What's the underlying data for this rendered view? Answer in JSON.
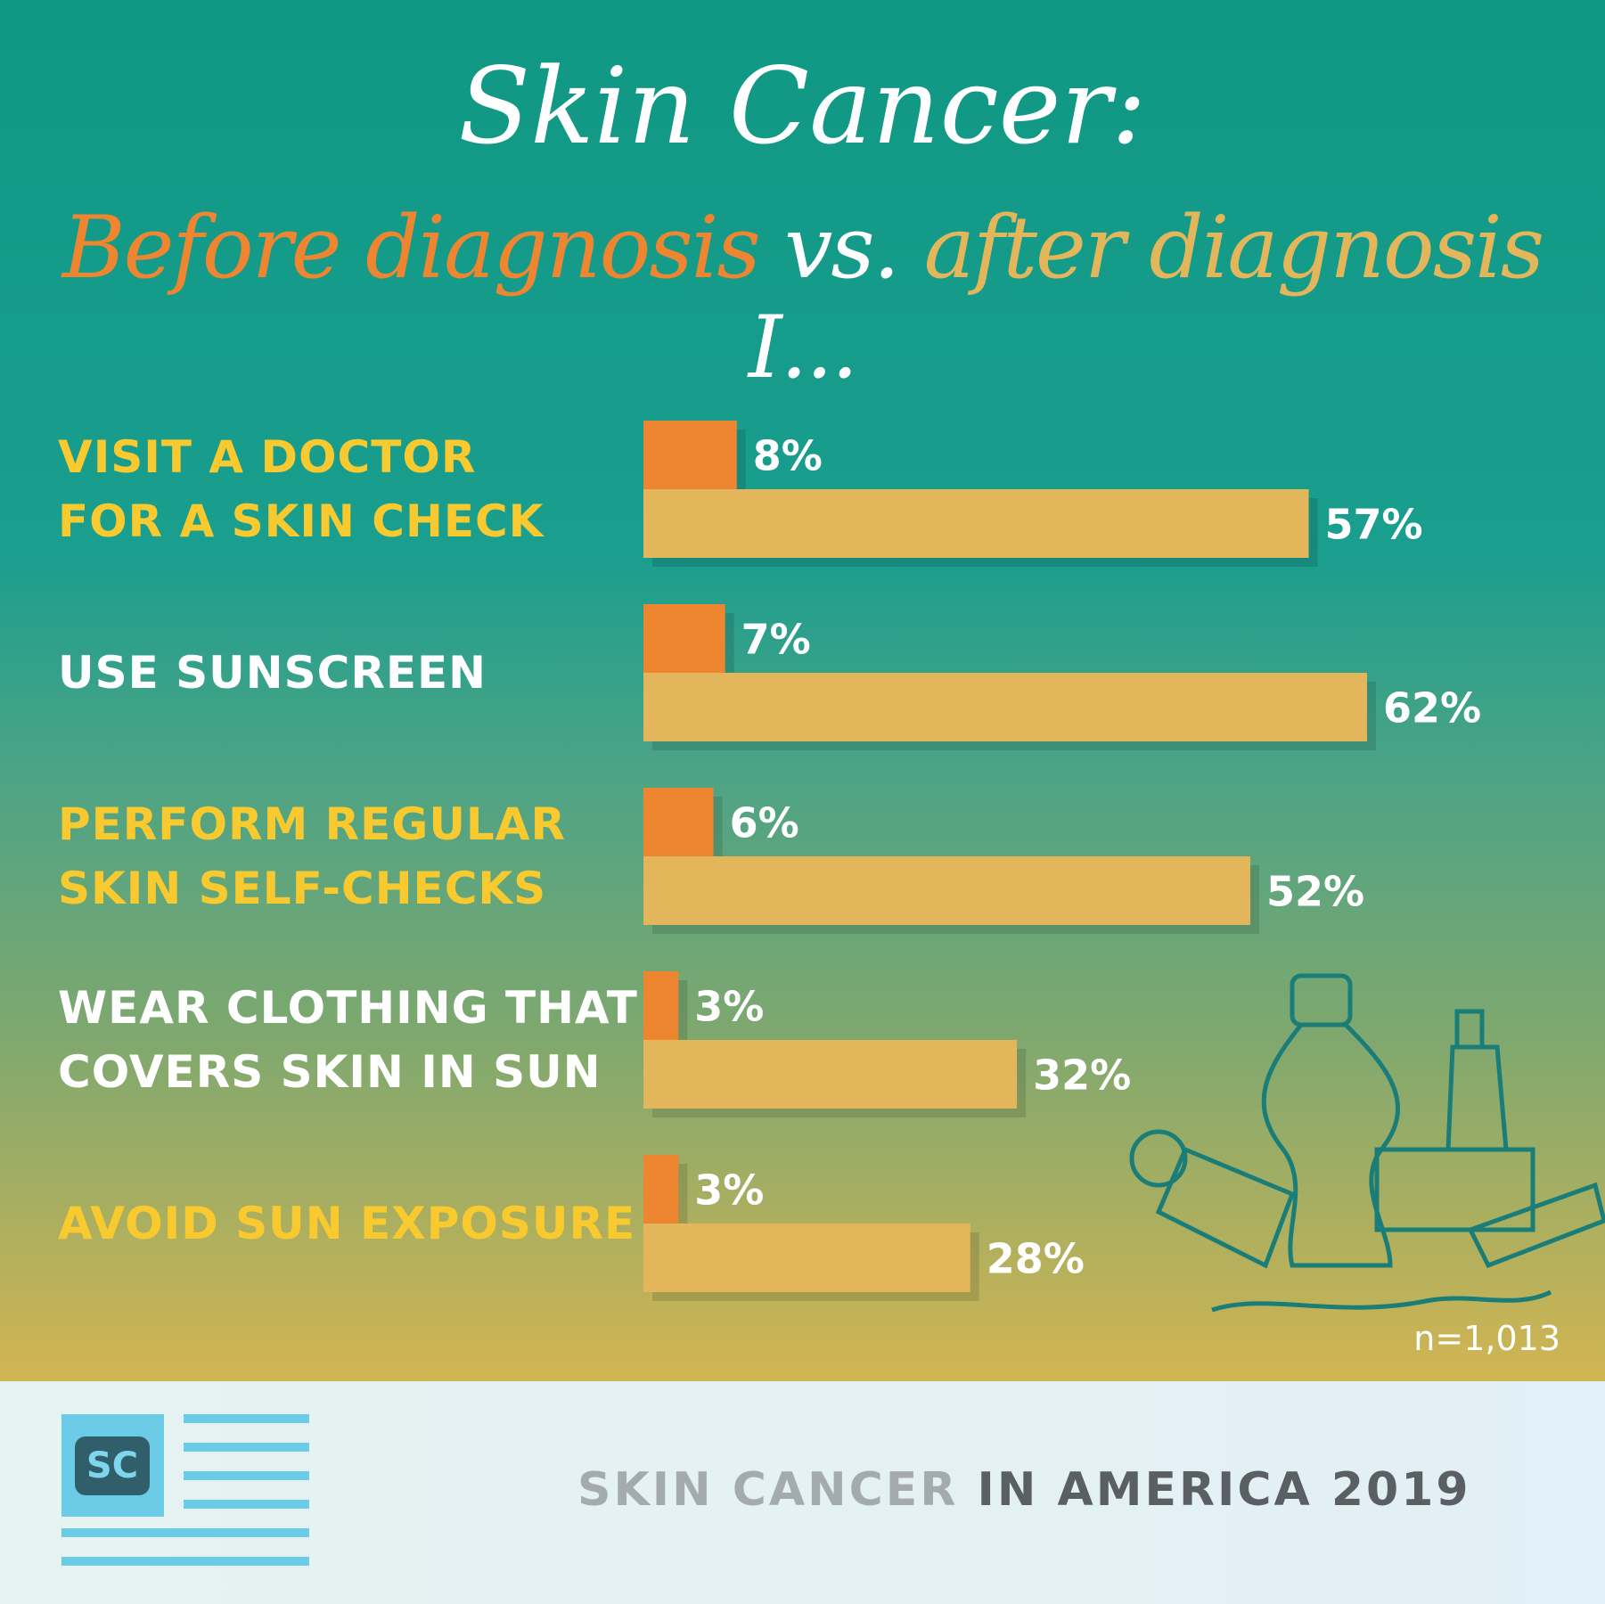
{
  "chart_data": {
    "type": "hbar",
    "title": {
      "line1": "Skin Cancer:",
      "vs": "vs.",
      "ending": "I..."
    },
    "categories": [
      "VISIT A DOCTOR\nFOR A SKIN CHECK",
      "USE SUNSCREEN",
      "PERFORM REGULAR\nSKIN SELF-CHECKS",
      "WEAR CLOTHING THAT\nCOVERS SKIN IN SUN",
      "AVOID SUN EXPOSURE"
    ],
    "series": [
      {
        "name": "Before diagnosis",
        "color": "#ee8530",
        "values": [
          8,
          7,
          6,
          3,
          3
        ],
        "value_labels": [
          "8%",
          "7%",
          "6%",
          "3%",
          "3%"
        ]
      },
      {
        "name": "after diagnosis",
        "color": "#e4b65b",
        "values": [
          57,
          62,
          52,
          32,
          28
        ],
        "value_labels": [
          "57%",
          "62%",
          "52%",
          "32%",
          "28%"
        ]
      }
    ],
    "note": "n=1,013"
  },
  "footer": {
    "logo": "SC",
    "title_light": "SKIN CANCER",
    "title_dark": "IN AMERICA 2019"
  }
}
